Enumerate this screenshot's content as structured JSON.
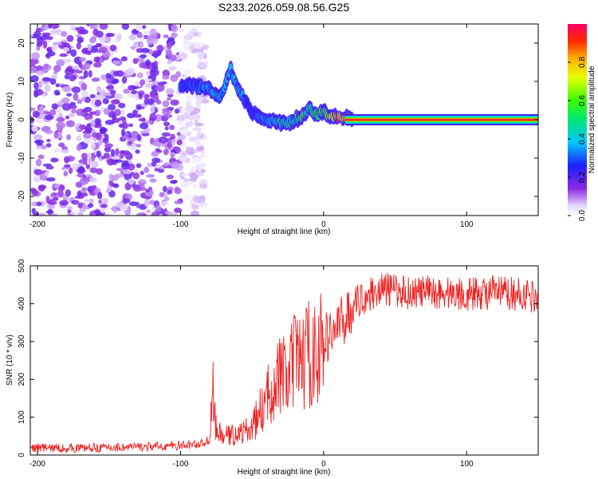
{
  "figure": {
    "title": "S233.2026.059.08.56.G25"
  },
  "chart_data": [
    {
      "type": "heatmap",
      "title": "S233.2026.059.08.56.G25",
      "xlabel": "Height of straight line (km)",
      "ylabel": "Frequency (Hz)",
      "xlim": [
        -205,
        150
      ],
      "ylim": [
        -25,
        25
      ],
      "xticks": [
        -200,
        -100,
        0,
        100
      ],
      "yticks": [
        -20,
        -10,
        0,
        10,
        20
      ],
      "colorbar": {
        "label": "Normalized spectral amplitude",
        "range": [
          0.0,
          1.0
        ],
        "ticks": [
          0.0,
          0.2,
          0.4,
          0.6,
          0.8
        ],
        "colormap": "rainbow (white-violet-blue-cyan-green-yellow-red-magenta)"
      },
      "ridge": {
        "description": "frequency of strongest spectral amplitude vs height",
        "height_km": [
          -100,
          -90,
          -80,
          -72,
          -65,
          -60,
          -55,
          -50,
          -45,
          -40,
          -35,
          -30,
          -25,
          -20,
          -15,
          -10,
          -5,
          0,
          5,
          10,
          15,
          20,
          150
        ],
        "frequency_hz": [
          9,
          9,
          8,
          6,
          13,
          8,
          5,
          2,
          1,
          0,
          0,
          -1,
          -1,
          0,
          1,
          3,
          1,
          2,
          1,
          0.5,
          0.5,
          0,
          0
        ],
        "amplitude": [
          0.3,
          0.3,
          0.4,
          0.4,
          0.4,
          0.4,
          0.3,
          0.3,
          0.3,
          0.4,
          0.4,
          0.5,
          0.5,
          0.5,
          0.6,
          0.5,
          0.6,
          0.6,
          0.8,
          0.9,
          0.9,
          0.95,
          0.95
        ]
      },
      "noise_region_km": [
        -205,
        -100
      ]
    },
    {
      "type": "line",
      "series": [
        {
          "name": "SNR",
          "color": "#ee2222",
          "x": [
            -205,
            -180,
            -150,
            -120,
            -100,
            -85,
            -80,
            -77,
            -75,
            -70,
            -60,
            -50,
            -45,
            -40,
            -35,
            -30,
            -25,
            -20,
            -15,
            -10,
            -5,
            0,
            5,
            10,
            15,
            20,
            25,
            30,
            40,
            50,
            60,
            80,
            100,
            120,
            150
          ],
          "y": [
            20,
            18,
            20,
            22,
            25,
            30,
            40,
            170,
            60,
            50,
            55,
            70,
            110,
            140,
            200,
            210,
            200,
            250,
            250,
            270,
            260,
            300,
            320,
            340,
            360,
            390,
            410,
            420,
            440,
            435,
            430,
            430,
            425,
            430,
            420
          ]
        }
      ],
      "xlabel": "Height of straight line (km)",
      "ylabel": "SNR (10 * v/v)",
      "xlim": [
        -205,
        150
      ],
      "ylim": [
        0,
        500
      ],
      "xticks": [
        -200,
        -100,
        0,
        100
      ],
      "yticks": [
        0,
        100,
        200,
        300,
        400,
        500
      ]
    }
  ]
}
